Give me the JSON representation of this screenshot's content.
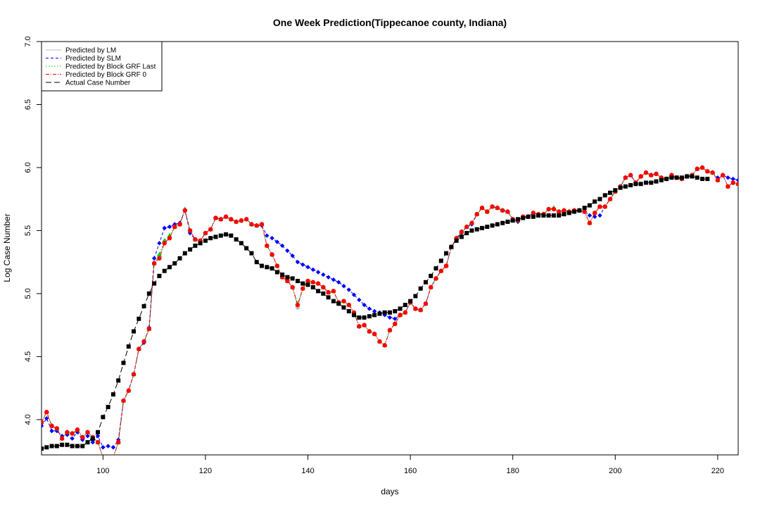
{
  "chart_data": {
    "type": "line",
    "title": "One Week Prediction(Tippecanoe county, Indiana)",
    "xlabel": "days",
    "ylabel": "Log Case Number",
    "xlim": [
      88,
      224
    ],
    "ylim": [
      3.72,
      7.0
    ],
    "xticks": [
      100,
      120,
      140,
      160,
      180,
      200,
      220
    ],
    "yticks": [
      4.0,
      4.5,
      5.0,
      5.5,
      6.0,
      6.5,
      7.0
    ],
    "xtick_labels": [
      "100",
      "120",
      "140",
      "160",
      "180",
      "200",
      "220"
    ],
    "ytick_labels": [
      "4.0",
      "4.5",
      "5.0",
      "5.5",
      "6.0",
      "6.5",
      "7.0"
    ],
    "grid": false,
    "legend_position": "top-left",
    "x": [
      88,
      89,
      90,
      91,
      92,
      93,
      94,
      95,
      96,
      97,
      98,
      99,
      100,
      101,
      102,
      103,
      104,
      105,
      106,
      107,
      108,
      109,
      110,
      111,
      112,
      113,
      114,
      115,
      116,
      117,
      118,
      119,
      120,
      121,
      122,
      123,
      124,
      125,
      126,
      127,
      128,
      129,
      130,
      131,
      132,
      133,
      134,
      135,
      136,
      137,
      138,
      139,
      140,
      141,
      142,
      143,
      144,
      145,
      146,
      147,
      148,
      149,
      150,
      151,
      152,
      153,
      154,
      155,
      156,
      157,
      158,
      159,
      160,
      161,
      162,
      163,
      164,
      165,
      166,
      167,
      168,
      169,
      170,
      171,
      172,
      173,
      174,
      175,
      176,
      177,
      178,
      179,
      180,
      181,
      182,
      183,
      184,
      185,
      186,
      187,
      188,
      189,
      190,
      191,
      192,
      193,
      194,
      195,
      196,
      197,
      198,
      199,
      200,
      201,
      202,
      203,
      204,
      205,
      206,
      207,
      208,
      209,
      210,
      211,
      212,
      213,
      214,
      215,
      216,
      217,
      218,
      219,
      220,
      221,
      222,
      223,
      224
    ],
    "series": [
      {
        "name": "Predicted by LM",
        "color": "#bebebe",
        "line_style": "solid",
        "marker": "circle",
        "values": [
          3.98,
          4.06,
          3.95,
          3.93,
          3.85,
          3.9,
          3.89,
          3.92,
          3.86,
          3.9,
          3.86,
          3.82,
          3.7,
          3.7,
          3.7,
          3.82,
          4.15,
          4.23,
          4.36,
          4.56,
          4.62,
          4.72,
          5.24,
          5.29,
          5.41,
          5.44,
          5.53,
          5.55,
          5.66,
          5.5,
          5.43,
          5.42,
          5.48,
          5.51,
          5.6,
          5.59,
          5.61,
          5.59,
          5.57,
          5.58,
          5.59,
          5.55,
          5.54,
          5.55,
          5.38,
          5.31,
          5.22,
          5.13,
          5.1,
          5.05,
          4.89,
          5.04,
          5.1,
          5.09,
          5.08,
          5.05,
          5.01,
          5.02,
          4.93,
          4.94,
          4.91,
          4.85,
          4.74,
          4.75,
          4.7,
          4.68,
          4.62,
          4.59,
          4.71,
          4.76,
          4.83,
          4.85,
          4.93,
          4.88,
          4.87,
          4.92,
          5.05,
          5.12,
          5.18,
          5.22,
          5.37,
          5.44,
          5.49,
          5.53,
          5.56,
          5.63,
          5.68,
          5.65,
          5.69,
          5.68,
          5.66,
          5.65,
          5.59,
          5.58,
          5.61,
          5.61,
          5.64,
          5.63,
          5.63,
          5.67,
          5.67,
          5.65,
          5.66,
          5.65,
          5.66,
          5.66,
          5.65,
          5.56,
          5.64,
          5.69,
          5.69,
          5.75,
          5.81,
          5.85,
          5.92,
          5.94,
          5.88,
          5.93,
          5.96,
          5.94,
          5.95,
          5.92,
          5.91,
          5.94,
          5.92,
          5.91,
          5.93,
          5.94,
          5.99,
          6.0,
          5.97,
          5.96,
          5.9,
          5.94,
          5.85,
          5.88,
          5.87
        ]
      },
      {
        "name": "Predicted by SLM",
        "color": "#0000ff",
        "line_style": "dashed",
        "marker": "diamond",
        "values": [
          3.95,
          4.01,
          3.91,
          3.91,
          3.87,
          3.88,
          3.85,
          3.9,
          3.84,
          3.87,
          3.82,
          3.87,
          3.78,
          3.79,
          3.78,
          3.84,
          4.15,
          4.23,
          4.36,
          4.56,
          4.61,
          4.73,
          5.28,
          5.4,
          5.52,
          5.53,
          5.55,
          5.56,
          5.66,
          5.48,
          5.43,
          5.42,
          5.48,
          5.51,
          5.6,
          5.59,
          5.61,
          5.59,
          5.57,
          5.58,
          5.59,
          5.55,
          5.54,
          5.54,
          5.46,
          5.44,
          5.41,
          5.38,
          5.34,
          5.3,
          5.25,
          5.23,
          5.21,
          5.19,
          5.17,
          5.15,
          5.13,
          5.11,
          5.09,
          5.06,
          5.03,
          4.99,
          4.95,
          4.91,
          4.88,
          4.86,
          4.85,
          4.83,
          4.81,
          4.8,
          4.83,
          4.85,
          4.93,
          4.88,
          4.87,
          4.92,
          5.05,
          5.12,
          5.18,
          5.22,
          5.37,
          5.43,
          5.48,
          5.53,
          5.55,
          5.63,
          5.68,
          5.65,
          5.69,
          5.68,
          5.66,
          5.65,
          5.59,
          5.57,
          5.61,
          5.61,
          5.64,
          5.63,
          5.63,
          5.67,
          5.67,
          5.65,
          5.66,
          5.65,
          5.66,
          5.66,
          5.65,
          5.62,
          5.61,
          5.62,
          5.69,
          5.75,
          5.81,
          5.85,
          5.92,
          5.94,
          5.88,
          5.93,
          5.96,
          5.94,
          5.95,
          5.92,
          5.91,
          5.94,
          5.92,
          5.91,
          5.93,
          5.94,
          5.99,
          6.0,
          5.97,
          5.96,
          5.92,
          5.94,
          5.92,
          5.91,
          5.9
        ]
      },
      {
        "name": "Predicted by Block GRF Last",
        "color": "#00cd00",
        "line_style": "dotted",
        "marker": "triangle",
        "values": [
          3.98,
          4.06,
          3.95,
          3.93,
          3.85,
          3.9,
          3.89,
          3.92,
          3.86,
          3.9,
          3.86,
          3.82,
          3.7,
          3.7,
          3.7,
          3.82,
          4.15,
          4.23,
          4.36,
          4.56,
          4.62,
          4.72,
          5.24,
          5.31,
          5.42,
          5.46,
          5.53,
          5.55,
          5.67,
          5.5,
          5.43,
          5.42,
          5.48,
          5.51,
          5.6,
          5.59,
          5.61,
          5.59,
          5.57,
          5.58,
          5.59,
          5.55,
          5.54,
          5.55,
          5.38,
          5.31,
          5.22,
          5.13,
          5.1,
          5.05,
          4.92,
          5.04,
          5.1,
          5.09,
          5.08,
          5.05,
          5.01,
          5.02,
          4.93,
          4.94,
          4.91,
          4.85,
          4.74,
          4.75,
          4.7,
          4.68,
          4.62,
          4.59,
          4.71,
          4.76,
          4.83,
          4.85,
          4.93,
          4.88,
          4.87,
          4.92,
          5.05,
          5.12,
          5.18,
          5.22,
          5.37,
          5.44,
          5.49,
          5.53,
          5.56,
          5.63,
          5.68,
          5.65,
          5.69,
          5.68,
          5.66,
          5.65,
          5.59,
          5.58,
          5.61,
          5.61,
          5.64,
          5.63,
          5.63,
          5.67,
          5.68,
          5.65,
          5.66,
          5.65,
          5.66,
          5.66,
          5.65,
          5.56,
          5.64,
          5.69,
          5.69,
          5.75,
          5.81,
          5.85,
          5.92,
          5.94,
          5.88,
          5.93,
          5.96,
          5.94,
          5.95,
          5.92,
          5.91,
          5.94,
          5.92,
          5.91,
          5.93,
          5.94,
          5.99,
          6.0,
          5.97,
          5.96,
          5.9,
          5.94,
          5.85,
          5.88,
          5.87
        ]
      },
      {
        "name": "Predicted by Block GRF 0",
        "color": "#ff0000",
        "line_style": "dashdot",
        "marker": "circle",
        "values": [
          3.98,
          4.06,
          3.95,
          3.93,
          3.85,
          3.9,
          3.89,
          3.92,
          3.86,
          3.9,
          3.86,
          3.82,
          3.7,
          3.7,
          3.7,
          3.82,
          4.15,
          4.23,
          4.36,
          4.56,
          4.62,
          4.72,
          5.24,
          5.28,
          5.4,
          5.44,
          5.53,
          5.55,
          5.66,
          5.5,
          5.43,
          5.42,
          5.48,
          5.51,
          5.6,
          5.59,
          5.61,
          5.59,
          5.57,
          5.58,
          5.59,
          5.55,
          5.54,
          5.55,
          5.38,
          5.31,
          5.22,
          5.13,
          5.1,
          5.05,
          4.91,
          5.04,
          5.1,
          5.09,
          5.08,
          5.05,
          5.01,
          5.02,
          4.93,
          4.94,
          4.91,
          4.85,
          4.74,
          4.75,
          4.7,
          4.68,
          4.62,
          4.59,
          4.71,
          4.76,
          4.83,
          4.85,
          4.93,
          4.88,
          4.87,
          4.92,
          5.05,
          5.12,
          5.18,
          5.22,
          5.37,
          5.44,
          5.49,
          5.53,
          5.56,
          5.63,
          5.68,
          5.65,
          5.69,
          5.68,
          5.66,
          5.65,
          5.59,
          5.58,
          5.61,
          5.61,
          5.64,
          5.63,
          5.63,
          5.67,
          5.67,
          5.65,
          5.66,
          5.65,
          5.66,
          5.66,
          5.65,
          5.56,
          5.64,
          5.69,
          5.69,
          5.75,
          5.81,
          5.85,
          5.92,
          5.94,
          5.88,
          5.93,
          5.96,
          5.94,
          5.95,
          5.92,
          5.91,
          5.94,
          5.92,
          5.91,
          5.93,
          5.94,
          5.99,
          6.0,
          5.97,
          5.96,
          5.9,
          5.94,
          5.85,
          5.88,
          5.87
        ]
      },
      {
        "name": "Actual Case Number",
        "color": "#000000",
        "line_style": "longdash",
        "marker": "square",
        "values": [
          3.77,
          3.78,
          3.79,
          3.79,
          3.8,
          3.8,
          3.79,
          3.79,
          3.79,
          3.82,
          3.85,
          3.9,
          4.02,
          4.1,
          4.2,
          4.31,
          4.45,
          4.58,
          4.7,
          4.8,
          4.9,
          5.0,
          5.08,
          5.14,
          5.18,
          5.21,
          5.24,
          5.28,
          5.32,
          5.35,
          5.38,
          5.4,
          5.42,
          5.44,
          5.45,
          5.46,
          5.47,
          5.46,
          5.43,
          5.4,
          5.36,
          5.32,
          5.25,
          5.22,
          5.21,
          5.2,
          5.17,
          5.15,
          5.13,
          5.12,
          5.1,
          5.08,
          5.07,
          5.05,
          5.02,
          5.0,
          4.97,
          4.94,
          4.92,
          4.89,
          4.86,
          4.83,
          4.81,
          4.81,
          4.82,
          4.83,
          4.84,
          4.85,
          4.85,
          4.86,
          4.88,
          4.91,
          4.94,
          4.98,
          5.04,
          5.09,
          5.14,
          5.2,
          5.26,
          5.32,
          5.37,
          5.42,
          5.45,
          5.48,
          5.5,
          5.51,
          5.52,
          5.53,
          5.54,
          5.55,
          5.56,
          5.57,
          5.58,
          5.59,
          5.6,
          5.61,
          5.61,
          5.62,
          5.62,
          5.62,
          5.62,
          5.62,
          5.63,
          5.64,
          5.65,
          5.66,
          5.68,
          5.7,
          5.73,
          5.75,
          5.78,
          5.8,
          5.82,
          5.84,
          5.85,
          5.86,
          5.87,
          5.87,
          5.88,
          5.88,
          5.89,
          5.9,
          5.91,
          5.92,
          5.92,
          5.92,
          5.93,
          5.93,
          5.92,
          5.91,
          5.91,
          null,
          null,
          null,
          null,
          null,
          null
        ]
      }
    ]
  }
}
